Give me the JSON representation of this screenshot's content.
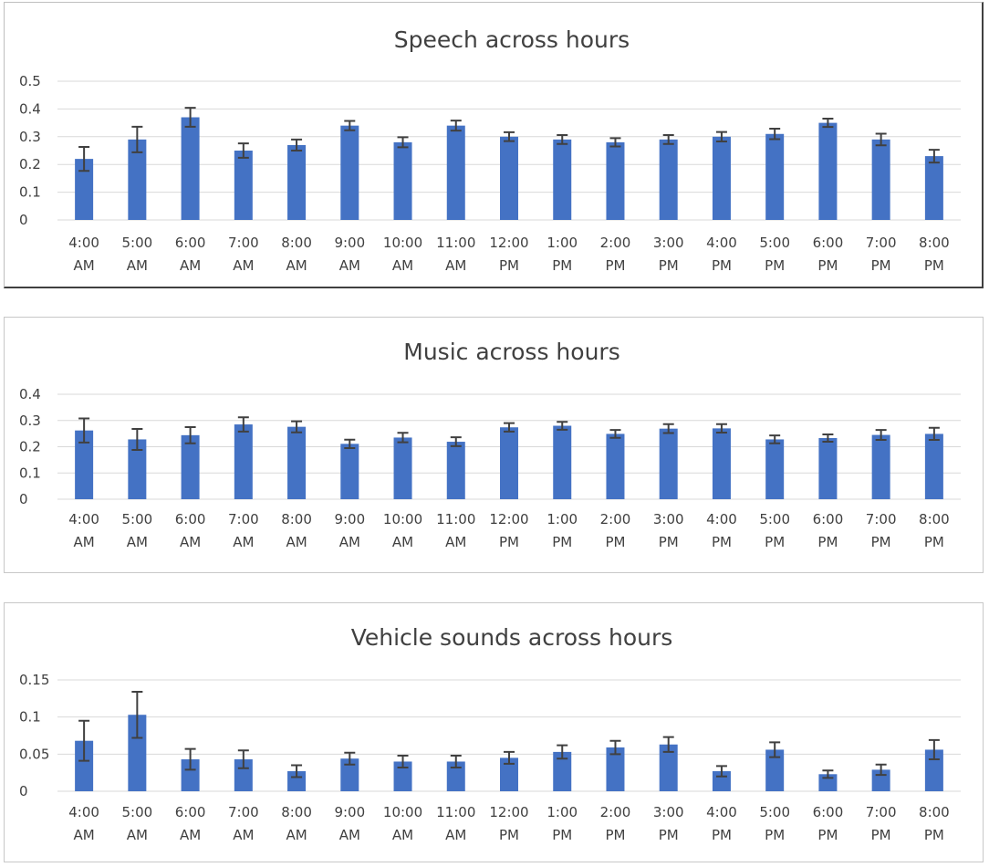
{
  "chart_data": [
    {
      "type": "bar",
      "title": "Speech across hours",
      "xlabel": "",
      "ylabel": "",
      "grid": true,
      "legend": "none",
      "bar_color": "#4472c4",
      "categories": [
        [
          "4:00",
          "AM"
        ],
        [
          "5:00",
          "AM"
        ],
        [
          "6:00",
          "AM"
        ],
        [
          "7:00",
          "AM"
        ],
        [
          "8:00",
          "AM"
        ],
        [
          "9:00",
          "AM"
        ],
        [
          "10:00",
          "AM"
        ],
        [
          "11:00",
          "AM"
        ],
        [
          "12:00",
          "PM"
        ],
        [
          "1:00",
          "PM"
        ],
        [
          "2:00",
          "PM"
        ],
        [
          "3:00",
          "PM"
        ],
        [
          "4:00",
          "PM"
        ],
        [
          "5:00",
          "PM"
        ],
        [
          "6:00",
          "PM"
        ],
        [
          "7:00",
          "PM"
        ],
        [
          "8:00",
          "PM"
        ]
      ],
      "ylim": [
        0,
        0.5
      ],
      "yticks": [
        "0",
        "0.1",
        "0.2",
        "0.3",
        "0.4",
        "0.5"
      ],
      "yticks_values": [
        0,
        0.1,
        0.2,
        0.3,
        0.4,
        0.5
      ],
      "values": [
        0.22,
        0.29,
        0.37,
        0.25,
        0.27,
        0.34,
        0.28,
        0.34,
        0.3,
        0.29,
        0.28,
        0.29,
        0.3,
        0.31,
        0.35,
        0.29,
        0.23
      ],
      "errors": [
        0.043,
        0.046,
        0.034,
        0.026,
        0.02,
        0.017,
        0.018,
        0.018,
        0.016,
        0.016,
        0.015,
        0.016,
        0.017,
        0.019,
        0.015,
        0.021,
        0.023
      ]
    },
    {
      "type": "bar",
      "title": "Music across hours",
      "xlabel": "",
      "ylabel": "",
      "grid": true,
      "legend": "none",
      "bar_color": "#4472c4",
      "categories": [
        [
          "4:00",
          "AM"
        ],
        [
          "5:00",
          "AM"
        ],
        [
          "6:00",
          "AM"
        ],
        [
          "7:00",
          "AM"
        ],
        [
          "8:00",
          "AM"
        ],
        [
          "9:00",
          "AM"
        ],
        [
          "10:00",
          "AM"
        ],
        [
          "11:00",
          "AM"
        ],
        [
          "12:00",
          "PM"
        ],
        [
          "1:00",
          "PM"
        ],
        [
          "2:00",
          "PM"
        ],
        [
          "3:00",
          "PM"
        ],
        [
          "4:00",
          "PM"
        ],
        [
          "5:00",
          "PM"
        ],
        [
          "6:00",
          "PM"
        ],
        [
          "7:00",
          "PM"
        ],
        [
          "8:00",
          "PM"
        ]
      ],
      "ylim": [
        0,
        0.4
      ],
      "yticks": [
        "0",
        "0.1",
        "0.2",
        "0.3",
        "0.4"
      ],
      "yticks_values": [
        0,
        0.1,
        0.2,
        0.3,
        0.4
      ],
      "values": [
        0.262,
        0.228,
        0.244,
        0.285,
        0.276,
        0.211,
        0.235,
        0.219,
        0.274,
        0.28,
        0.249,
        0.269,
        0.27,
        0.228,
        0.233,
        0.245,
        0.249
      ],
      "errors": [
        0.046,
        0.04,
        0.031,
        0.027,
        0.021,
        0.016,
        0.018,
        0.017,
        0.016,
        0.015,
        0.015,
        0.017,
        0.016,
        0.015,
        0.014,
        0.019,
        0.023
      ]
    },
    {
      "type": "bar",
      "title": "Vehicle sounds across hours",
      "xlabel": "",
      "ylabel": "",
      "grid": true,
      "legend": "none",
      "bar_color": "#4472c4",
      "categories": [
        [
          "4:00",
          "AM"
        ],
        [
          "5:00",
          "AM"
        ],
        [
          "6:00",
          "AM"
        ],
        [
          "7:00",
          "AM"
        ],
        [
          "8:00",
          "AM"
        ],
        [
          "9:00",
          "AM"
        ],
        [
          "10:00",
          "AM"
        ],
        [
          "11:00",
          "AM"
        ],
        [
          "12:00",
          "PM"
        ],
        [
          "1:00",
          "PM"
        ],
        [
          "2:00",
          "PM"
        ],
        [
          "3:00",
          "PM"
        ],
        [
          "4:00",
          "PM"
        ],
        [
          "5:00",
          "PM"
        ],
        [
          "6:00",
          "PM"
        ],
        [
          "7:00",
          "PM"
        ],
        [
          "8:00",
          "PM"
        ]
      ],
      "ylim": [
        0,
        0.15
      ],
      "yticks": [
        "0",
        "0.05",
        "0.1",
        "0.15"
      ],
      "yticks_values": [
        0,
        0.05,
        0.1,
        0.15
      ],
      "values": [
        0.068,
        0.103,
        0.043,
        0.043,
        0.027,
        0.044,
        0.04,
        0.04,
        0.045,
        0.053,
        0.059,
        0.063,
        0.027,
        0.056,
        0.023,
        0.029,
        0.056
      ],
      "errors": [
        0.027,
        0.031,
        0.014,
        0.012,
        0.008,
        0.008,
        0.008,
        0.008,
        0.008,
        0.009,
        0.009,
        0.01,
        0.007,
        0.01,
        0.005,
        0.007,
        0.013
      ]
    }
  ]
}
